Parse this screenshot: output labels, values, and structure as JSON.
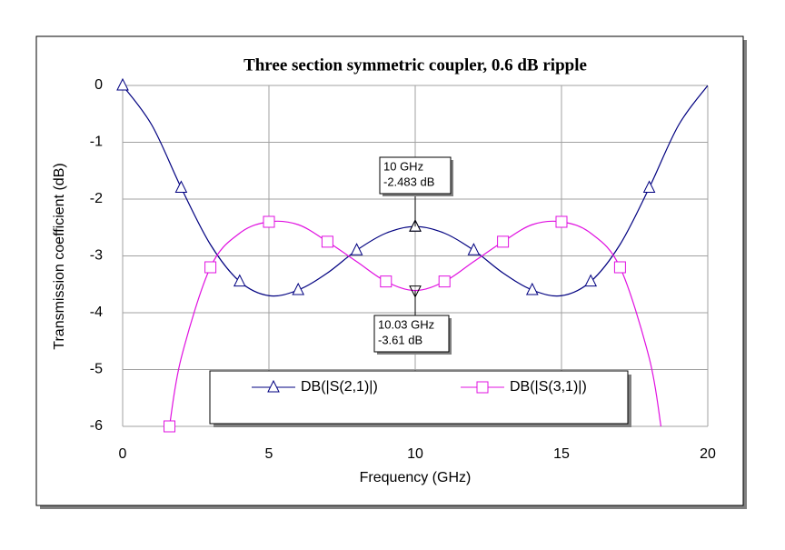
{
  "chart_data": {
    "type": "line",
    "title": "Three section symmetric coupler, 0.6 dB ripple",
    "xlabel": "Frequency (GHz)",
    "ylabel": "Transmission coefficient (dB)",
    "xlim": [
      0,
      20
    ],
    "ylim": [
      -6,
      0
    ],
    "xticks": [
      0,
      5,
      10,
      15,
      20
    ],
    "yticks": [
      0,
      -1,
      -2,
      -3,
      -4,
      -5,
      -6
    ],
    "grid": true,
    "series": [
      {
        "name": "DB(|S(2,1)|)",
        "color": "#000080",
        "marker": "triangle",
        "x": [
          0,
          1,
          2,
          3,
          4,
          5,
          6,
          7,
          8,
          9,
          10,
          11,
          12,
          13,
          14,
          15,
          16,
          17,
          18,
          19,
          20
        ],
        "values": [
          0,
          -0.7,
          -1.8,
          -2.8,
          -3.45,
          -3.7,
          -3.6,
          -3.3,
          -2.9,
          -2.6,
          -2.483,
          -2.6,
          -2.9,
          -3.3,
          -3.6,
          -3.7,
          -3.45,
          -2.8,
          -1.8,
          -0.7,
          0
        ]
      },
      {
        "name": "DB(|S(3,1)|)",
        "color": "#e010e0",
        "marker": "square",
        "x": [
          1.6,
          2,
          3,
          4,
          5,
          6,
          7,
          8,
          9,
          10,
          11,
          12,
          13,
          14,
          15,
          16,
          17,
          18,
          18.4
        ],
        "values": [
          -6,
          -4.8,
          -3.2,
          -2.6,
          -2.4,
          -2.45,
          -2.75,
          -3.1,
          -3.45,
          -3.61,
          -3.45,
          -3.1,
          -2.75,
          -2.45,
          -2.4,
          -2.6,
          -3.2,
          -4.8,
          -6
        ]
      }
    ],
    "annotations": [
      {
        "lines": [
          "10 GHz",
          "-2.483 dB"
        ]
      },
      {
        "lines": [
          "10.03 GHz",
          "-3.61 dB"
        ]
      }
    ]
  }
}
